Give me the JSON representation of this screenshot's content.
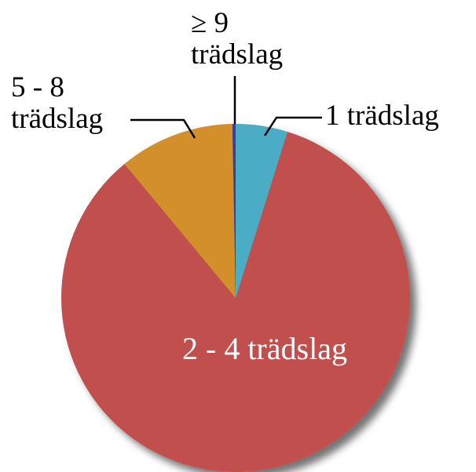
{
  "chart_data": {
    "type": "pie",
    "categories": [
      "1 trädslag",
      "2 - 4 trädslag",
      "5 - 8 trädslag",
      "≥ 9 trädslag"
    ],
    "values": [
      4.8,
      84.2,
      10.7,
      0.3
    ],
    "colors": [
      "#4bacc6",
      "#c0504d",
      "#d3902c",
      "#3f3d99"
    ]
  }
}
